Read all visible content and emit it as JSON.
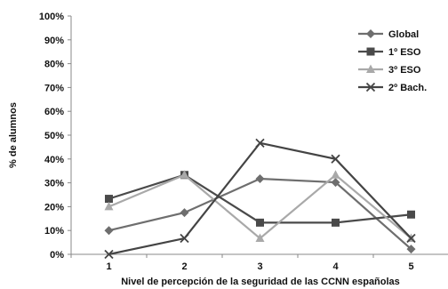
{
  "chart_data": {
    "type": "line",
    "x": [
      "1",
      "2",
      "3",
      "4",
      "5"
    ],
    "xlabel": "Nivel de percepción de la seguridad de las CCNN españolas",
    "ylabel": "% de alumnos",
    "ylim": [
      0,
      100
    ],
    "yticks": [
      "0%",
      "10%",
      "20%",
      "30%",
      "40%",
      "50%",
      "60%",
      "70%",
      "80%",
      "90%",
      "100%"
    ],
    "grid": false,
    "legend_position": "top-right",
    "series": [
      {
        "name": "Global",
        "marker": "diamond",
        "color": "#6e6e6e",
        "values": [
          10,
          17.5,
          31.7,
          30.2,
          2.2
        ]
      },
      {
        "name": "1º ESO",
        "marker": "square",
        "color": "#4a4a4a",
        "values": [
          23.3,
          33.3,
          13.3,
          13.3,
          16.7
        ]
      },
      {
        "name": "3º ESO",
        "marker": "triangle",
        "color": "#a9a9a9",
        "values": [
          20,
          33.3,
          6.7,
          33.3,
          6.7
        ]
      },
      {
        "name": "2º Bach.",
        "marker": "x",
        "color": "#444444",
        "values": [
          0,
          6.7,
          46.7,
          40,
          6.7
        ]
      }
    ]
  }
}
